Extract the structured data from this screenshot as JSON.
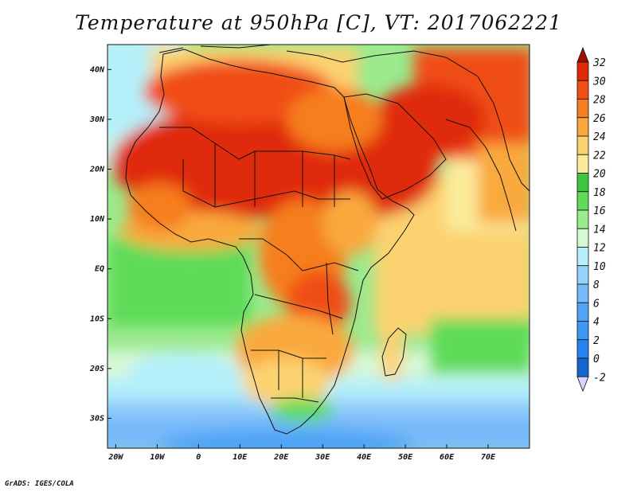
{
  "title": "Temperature at 950hPa [C], VT: 2017062221",
  "footer": "GrADS: IGES/COLA",
  "map": {
    "lon_range": [
      -22,
      80
    ],
    "lat_range": [
      -36,
      45
    ],
    "lon_ticks": [
      {
        "value": -20,
        "label": "20W"
      },
      {
        "value": -10,
        "label": "10W"
      },
      {
        "value": 0,
        "label": "0"
      },
      {
        "value": 10,
        "label": "10E"
      },
      {
        "value": 20,
        "label": "20E"
      },
      {
        "value": 30,
        "label": "30E"
      },
      {
        "value": 40,
        "label": "40E"
      },
      {
        "value": 50,
        "label": "50E"
      },
      {
        "value": 60,
        "label": "60E"
      },
      {
        "value": 70,
        "label": "70E"
      }
    ],
    "lat_ticks": [
      {
        "value": 40,
        "label": "40N"
      },
      {
        "value": 30,
        "label": "30N"
      },
      {
        "value": 20,
        "label": "20N"
      },
      {
        "value": 10,
        "label": "10N"
      },
      {
        "value": 0,
        "label": "EQ"
      },
      {
        "value": -10,
        "label": "10S"
      },
      {
        "value": -20,
        "label": "20S"
      },
      {
        "value": -30,
        "label": "30S"
      }
    ]
  },
  "colorbar": {
    "levels": [
      {
        "label": "32",
        "color": "#e02a0a"
      },
      {
        "label": "30",
        "color": "#f04e14"
      },
      {
        "label": "28",
        "color": "#f77e1c"
      },
      {
        "label": "26",
        "color": "#f9a93c"
      },
      {
        "label": "24",
        "color": "#fcd270"
      },
      {
        "label": "22",
        "color": "#fbec9c"
      },
      {
        "label": "20",
        "color": "#3ec63e"
      },
      {
        "label": "18",
        "color": "#5fdb5a"
      },
      {
        "label": "16",
        "color": "#9bea8e"
      },
      {
        "label": "14",
        "color": "#d6f8d6"
      },
      {
        "label": "12",
        "color": "#b4f0fa"
      },
      {
        "label": "10",
        "color": "#96d2fa"
      },
      {
        "label": "8",
        "color": "#78b9fa"
      },
      {
        "label": "6",
        "color": "#50a5f5"
      },
      {
        "label": "4",
        "color": "#3c97f5"
      },
      {
        "label": "2",
        "color": "#2882f0"
      },
      {
        "label": "0",
        "color": "#1464d2"
      },
      {
        "label": "-2",
        "color": "#0a1e78"
      }
    ],
    "top_color": "#a01000",
    "bottom_color": "#dcd2ff"
  }
}
